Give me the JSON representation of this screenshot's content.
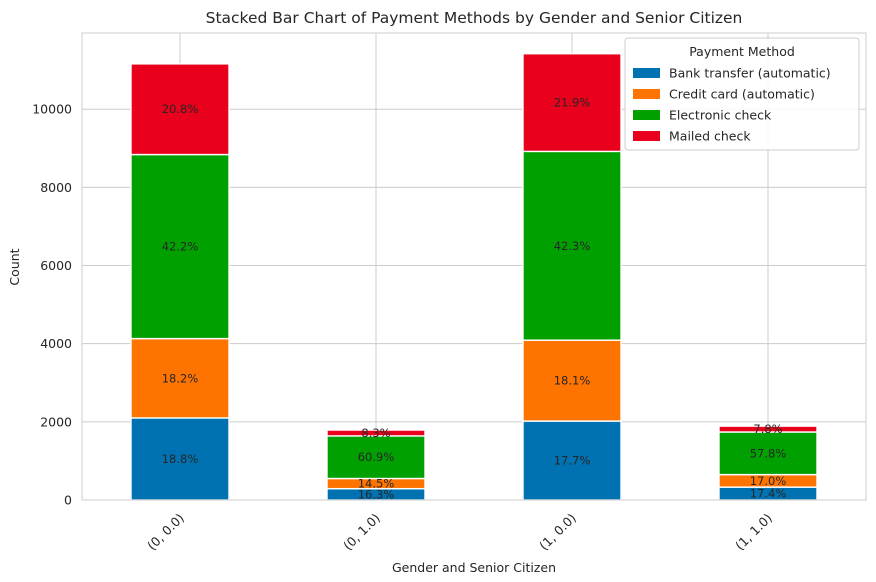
{
  "chart_data": {
    "type": "bar",
    "stacked": true,
    "title": "Stacked Bar Chart of Payment Methods by Gender and Senior Citizen",
    "xlabel": "Gender and Senior Citizen",
    "ylabel": "Count",
    "categories": [
      "(0, 0.0)",
      "(0, 1.0)",
      "(1, 0.0)",
      "(1, 1.0)"
    ],
    "ylim": [
      0,
      11950
    ],
    "yticks": [
      0,
      2000,
      4000,
      6000,
      8000,
      10000
    ],
    "ytick_labels": [
      "0",
      "2000",
      "4000",
      "6000",
      "8000",
      "10000"
    ],
    "grid": true,
    "legend": {
      "title": "Payment Method",
      "placement": "top-right"
    },
    "series": [
      {
        "name": "Bank transfer (automatic)",
        "color": "#0072b2",
        "values": [
          2100,
          290,
          2020,
          330
        ],
        "labels": [
          "18.8%",
          "16.3%",
          "17.7%",
          "17.4%"
        ]
      },
      {
        "name": "Credit card (automatic)",
        "color": "#ff7400",
        "values": [
          2030,
          260,
          2070,
          320
        ],
        "labels": [
          "18.2%",
          "14.5%",
          "18.1%",
          "17.0%"
        ]
      },
      {
        "name": "Electronic check",
        "color": "#00a000",
        "values": [
          4710,
          1090,
          4830,
          1090
        ],
        "labels": [
          "42.2%",
          "60.9%",
          "42.3%",
          "57.8%"
        ]
      },
      {
        "name": "Mailed check",
        "color": "#e8001c",
        "values": [
          2320,
          150,
          2500,
          150
        ],
        "labels": [
          "20.8%",
          "8.3%",
          "21.9%",
          "7.8%"
        ]
      }
    ]
  }
}
